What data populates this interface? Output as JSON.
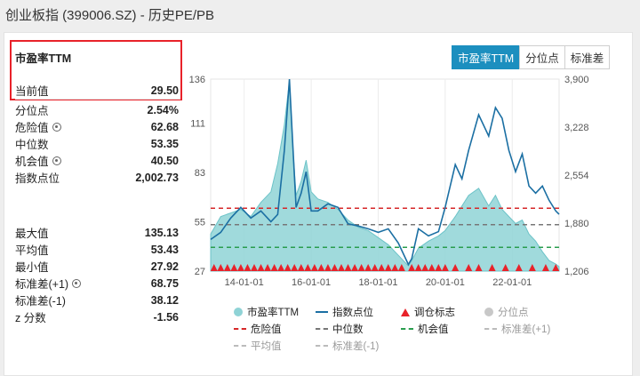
{
  "header": {
    "title": "创业板指 (399006.SZ) - 历史PE/PB"
  },
  "stats": {
    "title": "市盈率TTM",
    "current": {
      "label": "当前值",
      "value": "29.50"
    },
    "rows_top": [
      {
        "label": "分位点",
        "value": "2.54%",
        "gear": false
      },
      {
        "label": "危险值",
        "value": "62.68",
        "gear": true
      },
      {
        "label": "中位数",
        "value": "53.35",
        "gear": false
      },
      {
        "label": "机会值",
        "value": "40.50",
        "gear": true
      },
      {
        "label": "指数点位",
        "value": "2,002.73",
        "gear": false
      }
    ],
    "rows_bottom": [
      {
        "label": "最大值",
        "value": "135.13",
        "gear": false
      },
      {
        "label": "平均值",
        "value": "53.43",
        "gear": false
      },
      {
        "label": "最小值",
        "value": "27.92",
        "gear": false
      },
      {
        "label": "标准差(+1)",
        "value": "68.75",
        "gear": true
      },
      {
        "label": "标准差(-1)",
        "value": "38.12",
        "gear": false
      },
      {
        "label": "z 分数",
        "value": "-1.56",
        "gear": false
      }
    ]
  },
  "tabs": [
    {
      "label": "市盈率TTM",
      "active": true
    },
    {
      "label": "分位点",
      "active": false
    },
    {
      "label": "标准差",
      "active": false
    }
  ],
  "legend": {
    "pe": "市盈率TTM",
    "index": "指数点位",
    "signal": "调仓标志",
    "pct": "分位点",
    "danger": "危险值",
    "median": "中位数",
    "chance": "机会值",
    "sd_plus": "标准差(+1)",
    "mean": "平均值",
    "sd_minus": "标准差(-1)"
  },
  "colors": {
    "pe_fill": "#8fd3d6",
    "index_line": "#1b6fa3",
    "danger": "#d62728",
    "median": "#777777",
    "chance": "#2a9d4e",
    "signal": "#e8222a",
    "accent": "#1c8fbf"
  },
  "chart_data": {
    "type": "area",
    "x_ticks": [
      "14-01-01",
      "16-01-01",
      "18-01-01",
      "20-01-01",
      "22-01-01"
    ],
    "y_left_ticks": [
      "136",
      "111",
      "83",
      "55",
      "27"
    ],
    "y_right_ticks": [
      "3,900",
      "3,228",
      "2,554",
      "1,880",
      "1,206"
    ],
    "y_left_range": [
      27,
      136
    ],
    "y_right_range": [
      1206,
      3900
    ],
    "x_range": [
      2013.0,
      2023.4
    ],
    "reference_lines": {
      "danger": 62.68,
      "median": 53.35,
      "chance": 40.5
    },
    "series": [
      {
        "name": "市盈率TTM",
        "x": [
          2013.0,
          2013.3,
          2013.6,
          2013.9,
          2014.2,
          2014.5,
          2014.8,
          2015.0,
          2015.2,
          2015.35,
          2015.45,
          2015.55,
          2015.7,
          2015.85,
          2016.0,
          2016.2,
          2016.5,
          2016.8,
          2017.1,
          2017.4,
          2017.7,
          2018.0,
          2018.3,
          2018.6,
          2018.9,
          2019.0,
          2019.2,
          2019.5,
          2019.8,
          2020.0,
          2020.3,
          2020.5,
          2020.7,
          2021.0,
          2021.3,
          2021.5,
          2021.7,
          2021.9,
          2022.1,
          2022.3,
          2022.5,
          2022.7,
          2022.9,
          2023.1,
          2023.3,
          2023.4
        ],
        "values": [
          48,
          58,
          60,
          62,
          58,
          66,
          72,
          88,
          110,
          135,
          98,
          70,
          78,
          90,
          72,
          68,
          66,
          62,
          56,
          52,
          50,
          46,
          42,
          36,
          30,
          33,
          40,
          44,
          47,
          50,
          58,
          64,
          70,
          74,
          64,
          70,
          62,
          58,
          54,
          56,
          48,
          44,
          38,
          33,
          31,
          29.5
        ]
      },
      {
        "name": "指数点位",
        "x": [
          2013.0,
          2013.3,
          2013.6,
          2013.9,
          2014.2,
          2014.5,
          2014.8,
          2015.0,
          2015.2,
          2015.35,
          2015.45,
          2015.55,
          2015.7,
          2015.85,
          2016.0,
          2016.2,
          2016.5,
          2016.8,
          2017.1,
          2017.4,
          2017.7,
          2018.0,
          2018.3,
          2018.6,
          2018.9,
          2019.0,
          2019.2,
          2019.5,
          2019.8,
          2020.0,
          2020.3,
          2020.5,
          2020.7,
          2021.0,
          2021.3,
          2021.5,
          2021.7,
          2021.9,
          2022.1,
          2022.3,
          2022.5,
          2022.7,
          2022.9,
          2023.1,
          2023.3,
          2023.4
        ],
        "values": [
          1650,
          1750,
          1950,
          2100,
          1950,
          2050,
          1900,
          2000,
          2900,
          3900,
          3000,
          2100,
          2300,
          2600,
          2050,
          2050,
          2150,
          2100,
          1870,
          1840,
          1800,
          1750,
          1800,
          1600,
          1300,
          1380,
          1800,
          1700,
          1760,
          2100,
          2700,
          2500,
          2900,
          3400,
          3100,
          3500,
          3350,
          2900,
          2600,
          2850,
          2400,
          2300,
          2400,
          2200,
          2050,
          2002.73
        ]
      }
    ],
    "signals_x": [
      2013.1,
      2013.3,
      2013.5,
      2013.7,
      2013.9,
      2014.1,
      2014.3,
      2014.5,
      2014.7,
      2014.9,
      2015.1,
      2015.3,
      2015.5,
      2015.7,
      2015.9,
      2016.1,
      2016.3,
      2016.5,
      2016.7,
      2016.9,
      2017.1,
      2017.3,
      2017.5,
      2017.7,
      2017.9,
      2018.1,
      2018.3,
      2018.5,
      2018.7,
      2019.0,
      2019.2,
      2019.4,
      2019.6,
      2019.8,
      2020.0,
      2020.3,
      2020.7,
      2021.0,
      2021.4,
      2021.8,
      2022.2,
      2022.6,
      2023.0,
      2023.3
    ]
  }
}
